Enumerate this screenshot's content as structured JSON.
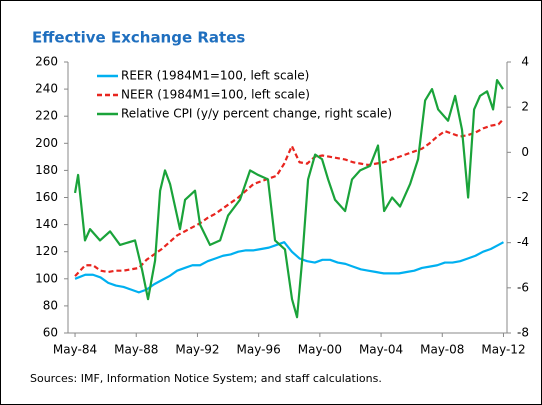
{
  "chart_data": {
    "type": "line",
    "title": "Effective Exchange Rates",
    "source": "Sources: IMF, Information Notice System; and staff calculations.",
    "x": [
      1984.33,
      1985,
      1985.5,
      1986,
      1986.5,
      1987,
      1987.5,
      1988,
      1988.5,
      1989,
      1989.5,
      1990,
      1990.5,
      1991,
      1991.5,
      1992,
      1992.5,
      1993,
      1993.5,
      1994,
      1994.5,
      1995,
      1995.5,
      1996,
      1996.5,
      1997,
      1997.5,
      1998,
      1998.5,
      1999,
      1999.5,
      2000,
      2000.5,
      2001,
      2001.5,
      2002,
      2002.5,
      2003,
      2003.5,
      2004,
      2004.5,
      2005,
      2005.5,
      2006,
      2006.5,
      2007,
      2007.5,
      2008,
      2008.5,
      2009,
      2009.5,
      2010,
      2010.5,
      2011,
      2011.5,
      2012,
      2012.33
    ],
    "series": [
      {
        "name": "REER (1984M1=100, left scale)",
        "color": "#00b0f0",
        "dash": false,
        "values": [
          100,
          103,
          103,
          101,
          97,
          95,
          94,
          92,
          90,
          92,
          96,
          99,
          102,
          106,
          108,
          110,
          110,
          113,
          115,
          117,
          118,
          120,
          121,
          121,
          122,
          123,
          125,
          127,
          120,
          115,
          113,
          112,
          114,
          114,
          112,
          111,
          109,
          107,
          106,
          105,
          104,
          104,
          104,
          105,
          106,
          108,
          109,
          110,
          112,
          112,
          113,
          115,
          117,
          120,
          122,
          125,
          127
        ]
      },
      {
        "name": "NEER (1984M1=100, left scale)",
        "color": "#e8251f",
        "dash": true,
        "values": [
          102,
          110,
          110,
          106,
          105,
          106,
          106,
          107,
          108,
          114,
          118,
          122,
          127,
          132,
          135,
          138,
          141,
          145,
          148,
          152,
          156,
          160,
          165,
          170,
          172,
          174,
          176,
          185,
          198,
          186,
          185,
          190,
          191,
          190,
          189,
          188,
          186,
          185,
          184,
          185,
          186,
          188,
          190,
          192,
          194,
          196,
          200,
          205,
          209,
          207,
          205,
          206,
          208,
          211,
          213,
          214,
          218
        ]
      },
      {
        "name": "Relative CPI (y/y percent change, right scale)",
        "color": "#1aa33a",
        "dash": false,
        "axis": "y2",
        "x": [
          1984.33,
          1984.53,
          1984.98,
          1985.31,
          1985.96,
          1986.62,
          1987.27,
          1988.25,
          1988.71,
          1989.1,
          1989.56,
          1989.89,
          1990.21,
          1990.54,
          1991.19,
          1991.52,
          1992.17,
          1992.5,
          1993.15,
          1993.81,
          1994.33,
          1995.11,
          1995.77,
          1996.29,
          1996.94,
          1997.4,
          1998.05,
          1998.51,
          1998.84,
          1999.17,
          1999.56,
          2000.02,
          2000.47,
          2000.87,
          2001.32,
          2001.98,
          2002.43,
          2002.96,
          2003.61,
          2004.13,
          2004.53,
          2005.05,
          2005.57,
          2006.23,
          2006.75,
          2007.21,
          2007.66,
          2008.06,
          2008.71,
          2009.17,
          2009.62,
          2010.02,
          2010.41,
          2010.8,
          2011.26,
          2011.65,
          2011.91,
          2012.3
        ],
        "values": [
          -1.8,
          -1.0,
          -3.9,
          -3.4,
          -3.9,
          -3.5,
          -4.1,
          -3.9,
          -5.2,
          -6.5,
          -4.8,
          -1.7,
          -0.8,
          -1.4,
          -3.4,
          -2.1,
          -1.7,
          -3.2,
          -4.1,
          -3.9,
          -2.8,
          -2.1,
          -0.8,
          -1.0,
          -1.2,
          -3.9,
          -4.3,
          -6.5,
          -7.3,
          -4.8,
          -1.2,
          -0.1,
          -0.3,
          -1.2,
          -2.1,
          -2.6,
          -1.2,
          -0.8,
          -0.6,
          0.3,
          -2.6,
          -2.0,
          -2.4,
          -1.4,
          -0.3,
          2.3,
          2.8,
          1.9,
          1.4,
          2.5,
          1.0,
          -2.0,
          1.9,
          2.5,
          2.7,
          1.9,
          3.2,
          2.8
        ]
      }
    ],
    "xlim": [
      1983.87,
      2012.56
    ],
    "xticks": [
      {
        "value": 1984.33,
        "label": "May-84"
      },
      {
        "value": 1988.33,
        "label": "May-88"
      },
      {
        "value": 1992.33,
        "label": "May-92"
      },
      {
        "value": 1996.33,
        "label": "May-96"
      },
      {
        "value": 2000.33,
        "label": "May-00"
      },
      {
        "value": 2004.33,
        "label": "May-04"
      },
      {
        "value": 2008.33,
        "label": "May-08"
      },
      {
        "value": 2012.33,
        "label": "May-12"
      }
    ],
    "ylim": [
      60,
      260
    ],
    "yticks": [
      60,
      80,
      100,
      120,
      140,
      160,
      180,
      200,
      220,
      240,
      260
    ],
    "y2lim": [
      -8,
      4
    ],
    "y2ticks": [
      -8,
      -6,
      -4,
      -2,
      0,
      2,
      4
    ],
    "grid": false
  }
}
